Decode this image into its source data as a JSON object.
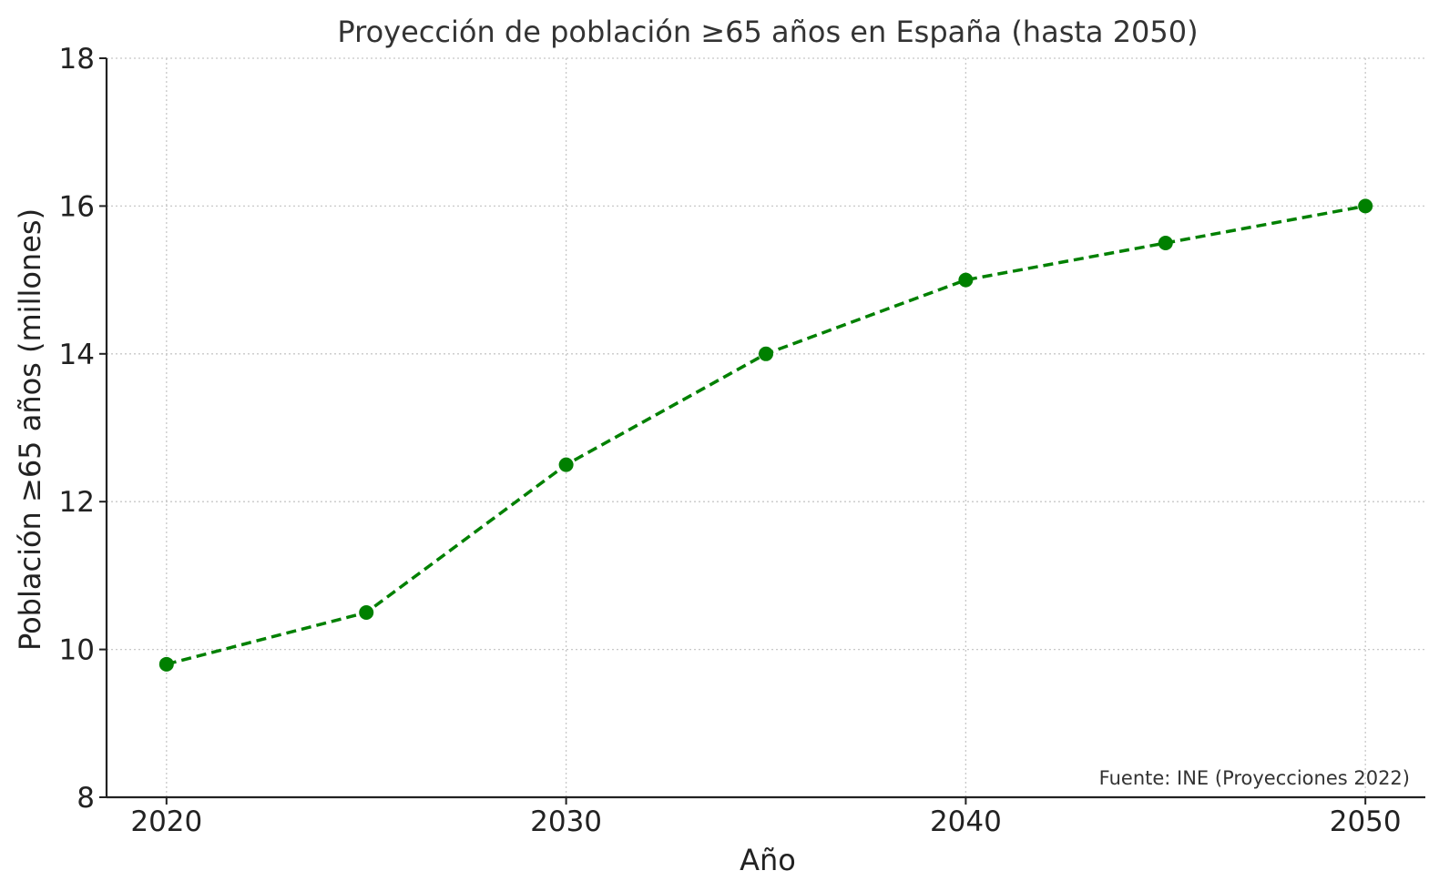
{
  "chart_data": {
    "type": "line",
    "title": "Proyección de población ≥65 años en España (hasta 2050)",
    "xlabel": "Año",
    "ylabel": "Población ≥65 años (millones)",
    "xlim": [
      2018.5,
      2051.5
    ],
    "ylim": [
      8,
      18
    ],
    "xticks": [
      2020,
      2030,
      2040,
      2050
    ],
    "yticks": [
      8,
      10,
      12,
      14,
      16,
      18
    ],
    "grid": true,
    "series": [
      {
        "color": "#008000",
        "line_style": "dashed",
        "marker": "circle",
        "x": [
          2020,
          2025,
          2030,
          2035,
          2040,
          2045,
          2050
        ],
        "y": [
          9.8,
          10.5,
          12.5,
          14.0,
          15.0,
          15.5,
          16.0
        ]
      }
    ],
    "annotation": "Fuente: INE (Proyecciones 2022)"
  }
}
